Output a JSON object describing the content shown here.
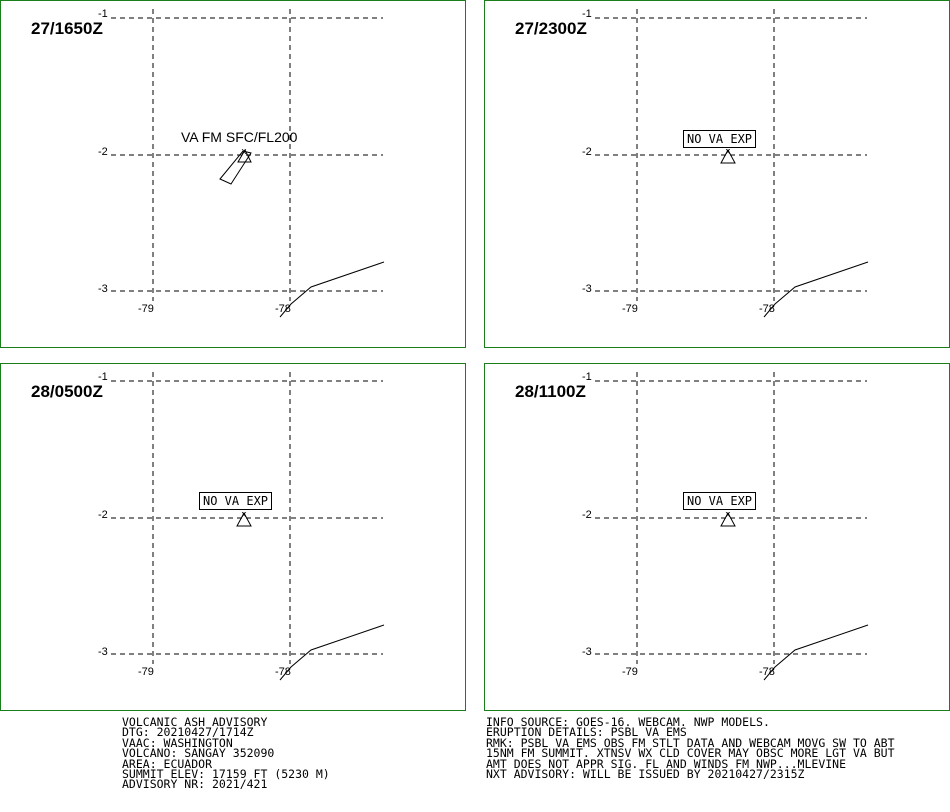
{
  "panels": [
    {
      "time": "27/1650Z",
      "label": "VA FM SFC/FL200",
      "label_style": "plain",
      "ticks": {
        "lat": [
          "-1",
          "-2",
          "-3"
        ],
        "lon": [
          "-79",
          "-78"
        ]
      }
    },
    {
      "time": "27/2300Z",
      "label": "NO VA EXP",
      "label_style": "box",
      "ticks": {
        "lat": [
          "-1",
          "-2",
          "-3"
        ],
        "lon": [
          "-79",
          "-78"
        ]
      }
    },
    {
      "time": "28/0500Z",
      "label": "NO VA EXP",
      "label_style": "box",
      "ticks": {
        "lat": [
          "-1",
          "-2",
          "-3"
        ],
        "lon": [
          "-79",
          "-78"
        ]
      }
    },
    {
      "time": "28/1100Z",
      "label": "NO VA EXP",
      "label_style": "box",
      "ticks": {
        "lat": [
          "-1",
          "-2",
          "-3"
        ],
        "lon": [
          "-79",
          "-78"
        ]
      }
    }
  ],
  "advisory_left": [
    "VOLCANIC ASH ADVISORY",
    "DTG: 20210427/1714Z",
    "VAAC: WASHINGTON",
    "VOLCANO: SANGAY 352090",
    "AREA: ECUADOR",
    "SUMMIT ELEV: 17159 FT (5230 M)",
    "ADVISORY NR: 2021/421"
  ],
  "advisory_right": [
    "INFO SOURCE: GOES-16. WEBCAM. NWP MODELS.",
    "ERUPTION DETAILS: PSBL VA EMS",
    "RMK: PSBL VA EMS OBS FM STLT DATA AND WEBCAM MOVG SW TO ABT",
    "15NM FM SUMMIT. XTNSV WX CLD COVER MAY OBSC MORE LGT VA BUT",
    "AMT DOES NOT APPR SIG. FL AND WINDS FM NWP...MLEVINE",
    "NXT ADVISORY: WILL BE ISSUED BY 20210427/2315Z"
  ],
  "colors": {
    "frame": "#1a7f1a",
    "ink": "#000000"
  }
}
